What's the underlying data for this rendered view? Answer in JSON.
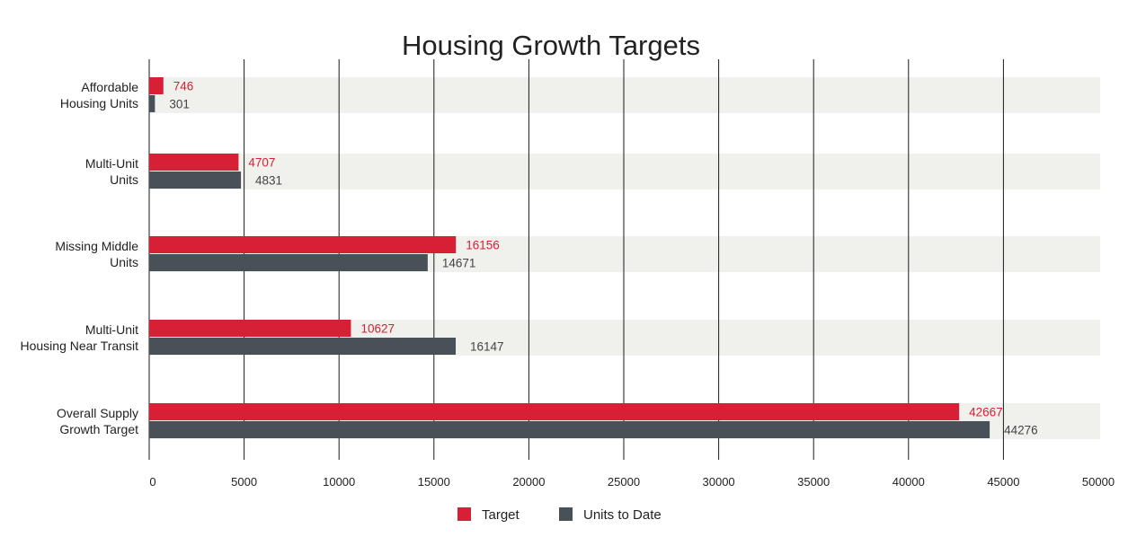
{
  "chart_data": {
    "type": "bar",
    "orientation": "horizontal",
    "title": "Housing Growth Targets",
    "categories": [
      [
        "Affordable",
        "Housing Units"
      ],
      [
        "Multi-Unit",
        "Units"
      ],
      [
        "Missing Middle",
        "Units"
      ],
      [
        "Multi-Unit",
        "Housing Near Transit"
      ],
      [
        "Overall Supply",
        "Growth Target"
      ]
    ],
    "series": [
      {
        "name": "Target",
        "color": "#d71f35",
        "values": [
          746,
          4707,
          16156,
          10627,
          42667
        ]
      },
      {
        "name": "Units to Date",
        "color": "#485058",
        "values": [
          301,
          4831,
          14671,
          16147,
          44276
        ]
      }
    ],
    "value_label_colors": [
      "#d71f35",
      "#444444"
    ],
    "xlim": [
      0,
      50000
    ],
    "xticks": [
      0,
      5000,
      10000,
      15000,
      20000,
      25000,
      30000,
      35000,
      40000,
      45000,
      50000
    ],
    "xlabel": "",
    "ylabel": "",
    "grid": true,
    "band_color": "#f0f0ec",
    "legend_position": "bottom-center"
  }
}
